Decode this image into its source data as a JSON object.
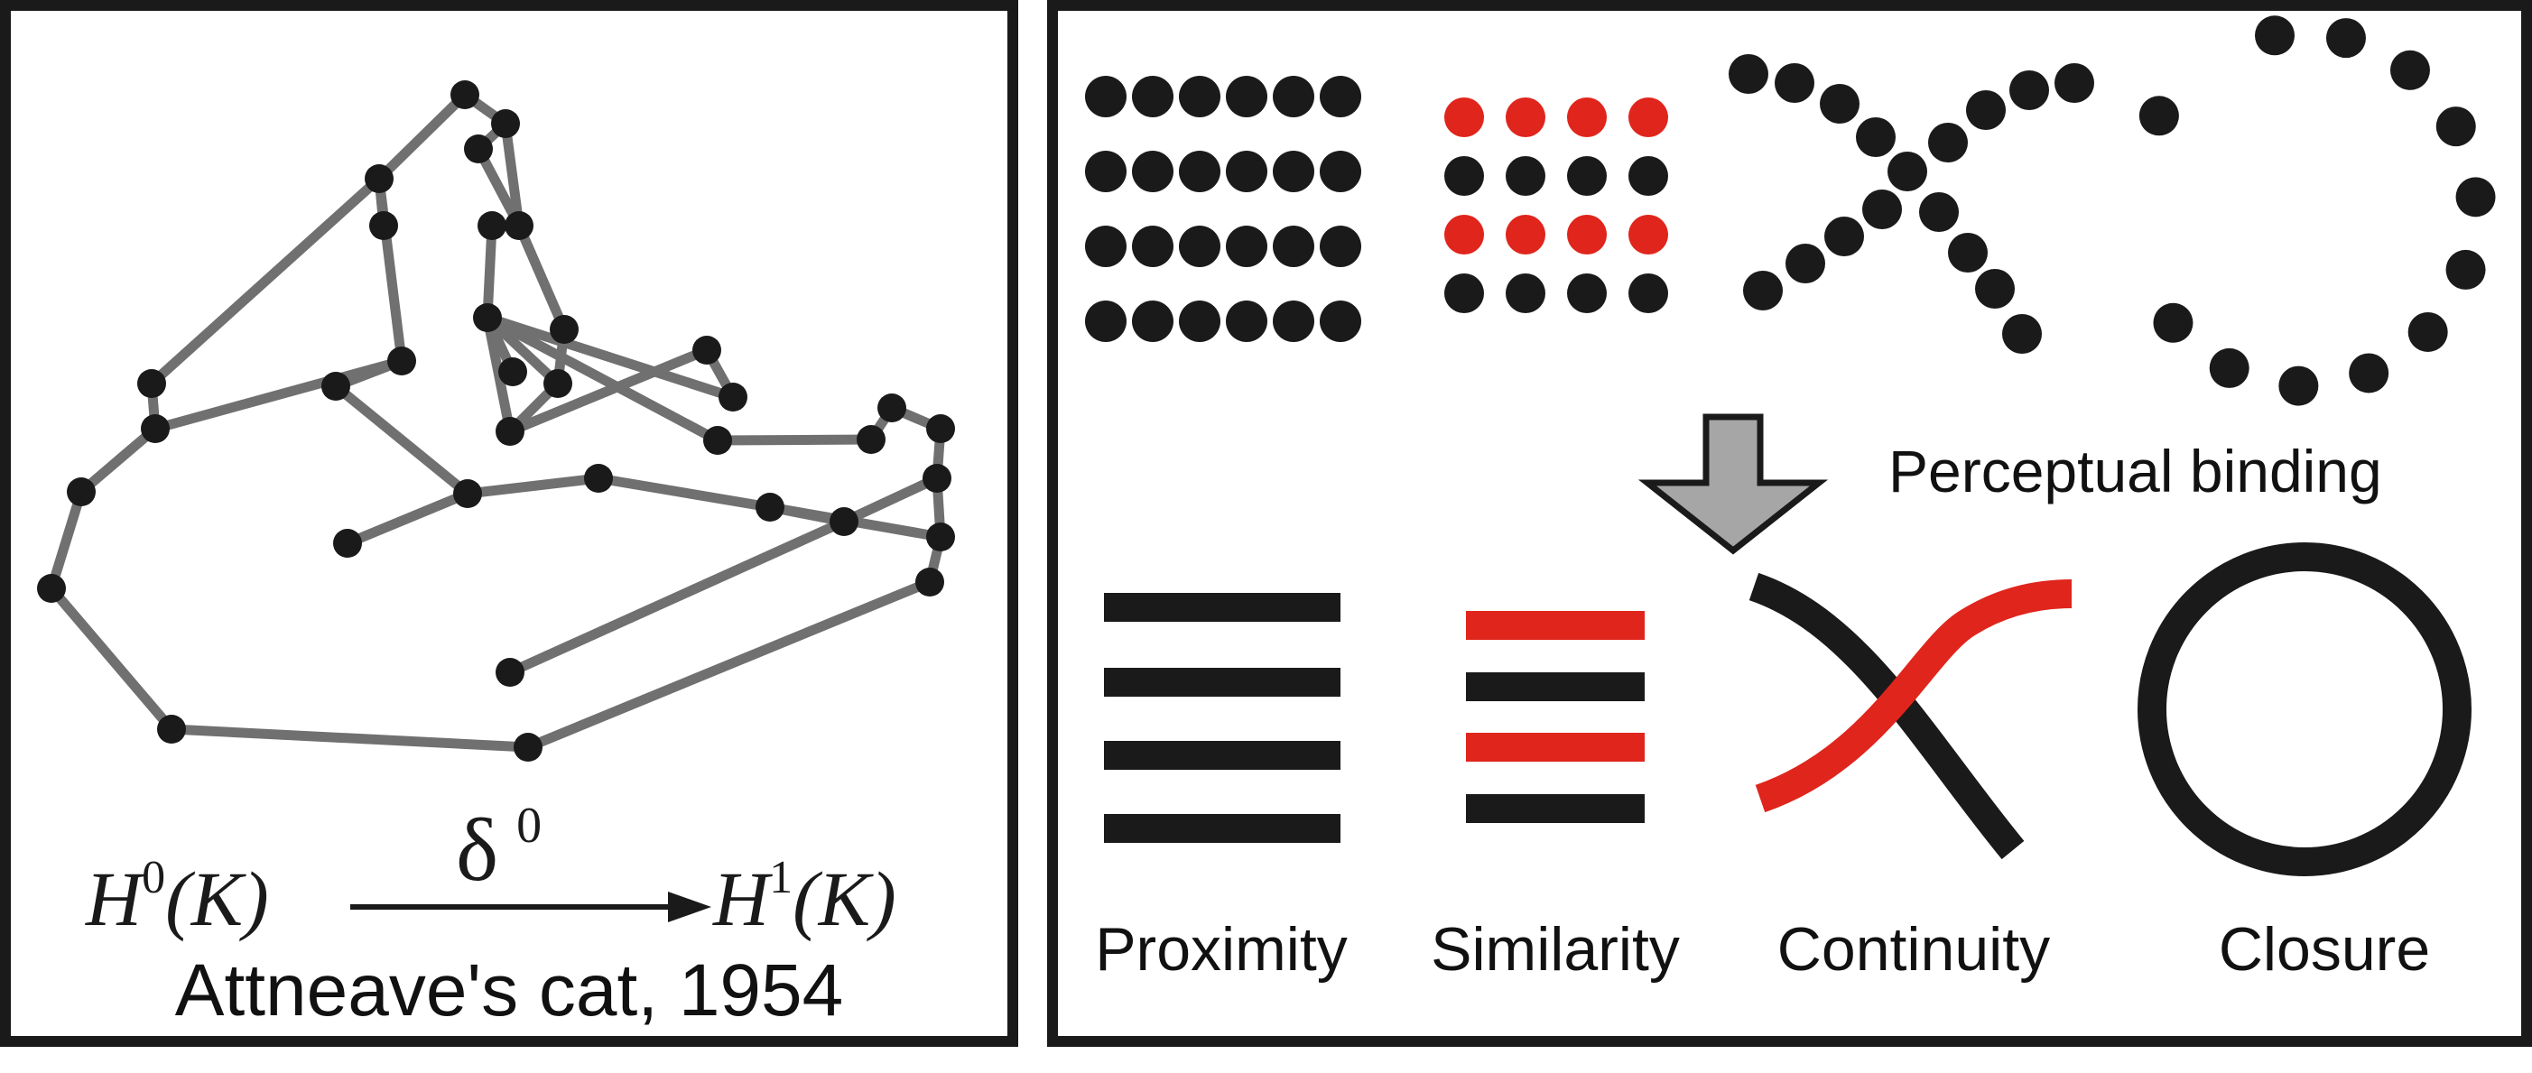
{
  "left_panel": {
    "caption": "Attneave's cat, 1954",
    "formula": {
      "source_symbol": "H",
      "source_superscript": "0",
      "source_argument": "(K)",
      "map_symbol": "δ",
      "map_superscript": "0",
      "target_symbol": "H",
      "target_superscript": "1",
      "target_argument": "(K)"
    }
  },
  "right_panel": {
    "binding_label": "Perceptual binding",
    "principles": [
      {
        "label": "Proximity"
      },
      {
        "label": "Similarity"
      },
      {
        "label": "Continuity"
      },
      {
        "label": "Closure"
      }
    ]
  },
  "colors": {
    "black": "#1a1a1a",
    "red": "#e0251c",
    "gray_edge": "#707070",
    "arrow_fill": "#a6a6a6",
    "arrow_stroke": "#1a1a1a",
    "frame": "#1a1a1a"
  },
  "icons": {
    "down_arrow": "down-arrow-icon",
    "right_arrow": "right-arrow-icon"
  }
}
